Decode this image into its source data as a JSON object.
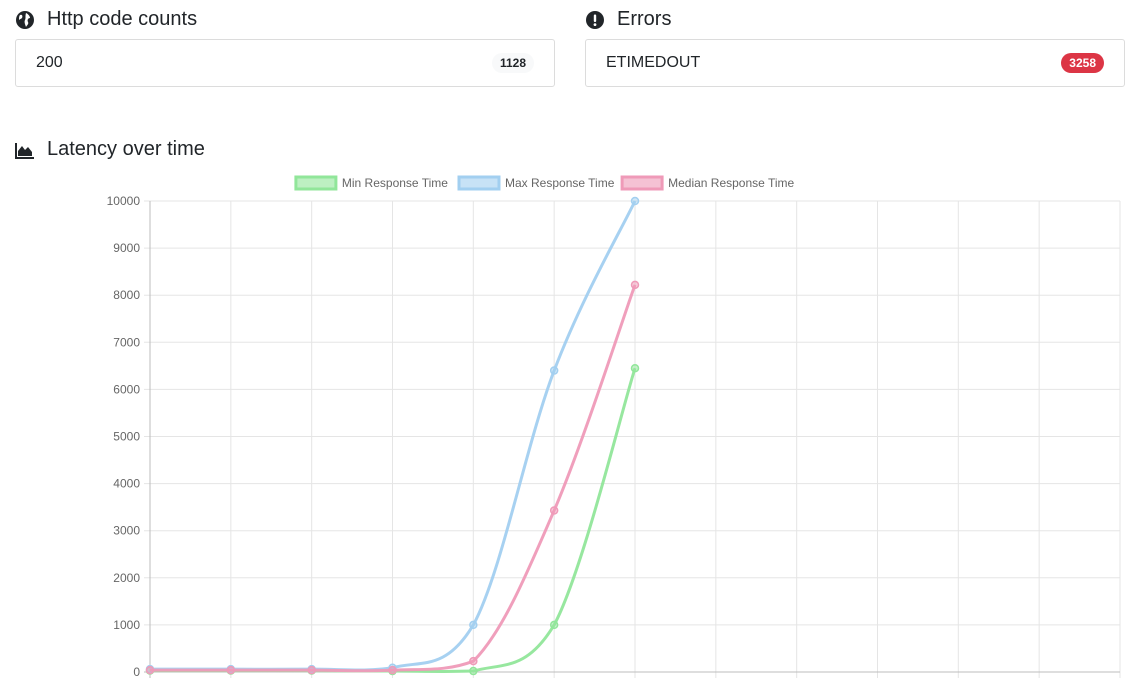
{
  "http_codes": {
    "title": "Http code counts",
    "icon": "globe-icon",
    "items": [
      {
        "code": "200",
        "count": "1128"
      }
    ]
  },
  "errors": {
    "title": "Errors",
    "icon": "exclamation-circle-icon",
    "items": [
      {
        "code": "ETIMEDOUT",
        "count": "3258"
      }
    ]
  },
  "latency": {
    "title": "Latency over time",
    "icon": "area-chart-icon"
  },
  "chart_data": {
    "type": "line",
    "title": "",
    "xlabel": "",
    "ylabel": "",
    "ylim": [
      0,
      10000
    ],
    "y_ticks": [
      0,
      1000,
      2000,
      3000,
      4000,
      5000,
      6000,
      7000,
      8000,
      9000,
      10000
    ],
    "x_slots": 13,
    "grid": true,
    "legend_position": "top",
    "series": [
      {
        "name": "Min Response Time",
        "color": "#91e69a",
        "values": [
          30,
          30,
          30,
          20,
          20,
          1000,
          6450
        ]
      },
      {
        "name": "Max Response Time",
        "color": "#a2cff0",
        "values": [
          60,
          60,
          60,
          90,
          1000,
          6400,
          10000
        ]
      },
      {
        "name": "Median Response Time",
        "color": "#ef9ab8",
        "values": [
          40,
          40,
          40,
          40,
          230,
          3430,
          8220
        ]
      }
    ]
  }
}
